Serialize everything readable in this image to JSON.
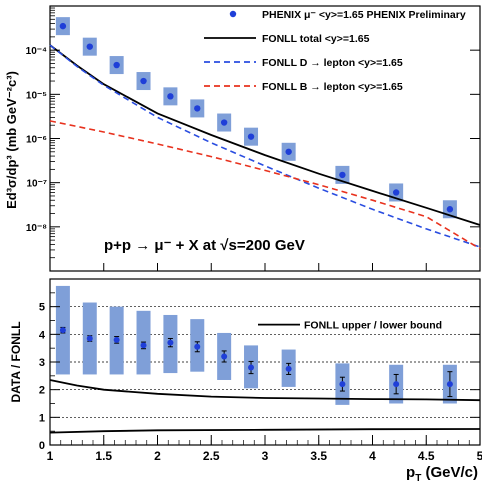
{
  "chart_data": [
    {
      "type": "scatter",
      "panel": "top",
      "ylabel": "Ed³σ/dp³ (mb GeV⁻²c³)",
      "yscale": "log",
      "ylim": [
        1e-09,
        0.001
      ],
      "xlim": [
        1,
        5
      ],
      "y_tick_labels": [
        "10⁻⁴",
        "10⁻⁵",
        "10⁻⁶",
        "10⁻⁷",
        "10⁻⁸"
      ],
      "y_tick_values": [
        0.0001,
        1e-05,
        1e-06,
        1e-07,
        1e-08
      ],
      "annotation": "p+p → μ⁻ + X at √s=200 GeV",
      "legend_position": "top-right",
      "legend": [
        {
          "key": "data",
          "label": "PHENIX μ⁻ <y>=1.65 PHENIX Preliminary",
          "style": "marker",
          "color": "#1f3fd8"
        },
        {
          "key": "total",
          "label": "FONLL total <y>=1.65",
          "style": "solid",
          "color": "#000000"
        },
        {
          "key": "d",
          "label": "FONLL D → lepton <y>=1.65",
          "style": "dashed",
          "color": "#2a4de0"
        },
        {
          "key": "b",
          "label": "FONLL B → lepton <y>=1.65",
          "style": "dashed",
          "color": "#e8321e"
        }
      ],
      "series": [
        {
          "key": "data",
          "points": [
            {
              "x": 1.12,
              "y": 0.00035
            },
            {
              "x": 1.37,
              "y": 0.00012
            },
            {
              "x": 1.62,
              "y": 4.6e-05
            },
            {
              "x": 1.87,
              "y": 2e-05
            },
            {
              "x": 2.12,
              "y": 9e-06
            },
            {
              "x": 2.37,
              "y": 4.8e-06
            },
            {
              "x": 2.62,
              "y": 2.3e-06
            },
            {
              "x": 2.87,
              "y": 1.1e-06
            },
            {
              "x": 3.22,
              "y": 5e-07
            },
            {
              "x": 3.72,
              "y": 1.5e-07
            },
            {
              "x": 4.22,
              "y": 6e-08
            },
            {
              "x": 4.72,
              "y": 2.5e-08
            }
          ]
        },
        {
          "key": "total",
          "points": [
            {
              "x": 1.0,
              "y": 0.00013
            },
            {
              "x": 1.25,
              "y": 4.5e-05
            },
            {
              "x": 1.5,
              "y": 1.7e-05
            },
            {
              "x": 2.0,
              "y": 3.7e-06
            },
            {
              "x": 2.5,
              "y": 1.2e-06
            },
            {
              "x": 3.0,
              "y": 4.2e-07
            },
            {
              "x": 3.5,
              "y": 1.6e-07
            },
            {
              "x": 4.0,
              "y": 6.5e-08
            },
            {
              "x": 4.5,
              "y": 2.7e-08
            },
            {
              "x": 5.0,
              "y": 1.1e-08
            }
          ]
        },
        {
          "key": "d",
          "points": [
            {
              "x": 1.0,
              "y": 0.00013
            },
            {
              "x": 1.25,
              "y": 4.3e-05
            },
            {
              "x": 1.5,
              "y": 1.6e-05
            },
            {
              "x": 2.0,
              "y": 3e-06
            },
            {
              "x": 2.5,
              "y": 8e-07
            },
            {
              "x": 3.0,
              "y": 2.4e-07
            },
            {
              "x": 3.5,
              "y": 7.5e-08
            },
            {
              "x": 4.0,
              "y": 2.5e-08
            },
            {
              "x": 4.5,
              "y": 9e-09
            },
            {
              "x": 5.0,
              "y": 3.5e-09
            }
          ]
        },
        {
          "key": "b",
          "points": [
            {
              "x": 1.0,
              "y": 2.5e-06
            },
            {
              "x": 1.5,
              "y": 1.4e-06
            },
            {
              "x": 2.0,
              "y": 7.5e-07
            },
            {
              "x": 2.5,
              "y": 3.9e-07
            },
            {
              "x": 3.0,
              "y": 1.9e-07
            },
            {
              "x": 3.5,
              "y": 9e-08
            },
            {
              "x": 4.0,
              "y": 4e-08
            },
            {
              "x": 4.5,
              "y": 1.7e-08
            },
            {
              "x": 5.0,
              "y": 3.2e-09
            }
          ]
        }
      ]
    },
    {
      "type": "scatter",
      "panel": "bottom",
      "xlabel": "p_T (GeV/c)",
      "ylabel": "DATA / FONLL",
      "xlim": [
        1,
        5
      ],
      "ylim": [
        0,
        6
      ],
      "x_ticks": [
        1,
        1.5,
        2,
        2.5,
        3,
        3.5,
        4,
        4.5,
        5
      ],
      "x_tick_labels": [
        "1",
        "1.5",
        "2",
        "2.5",
        "3",
        "3.5",
        "4",
        "4.5",
        "5"
      ],
      "y_ticks": [
        0,
        1,
        2,
        3,
        4,
        5
      ],
      "y_tick_labels": [
        "0",
        "1",
        "2",
        "3",
        "4",
        "5"
      ],
      "grid": "dotted horizontal at integer y",
      "legend_position": "top-right",
      "legend": [
        {
          "key": "band",
          "label": "FONLL upper / lower bound",
          "style": "solid",
          "color": "#000000"
        }
      ],
      "series": [
        {
          "key": "ratio",
          "points": [
            {
              "x": 1.12,
              "y": 4.15,
              "err": 0.1,
              "sys_lo": 2.55,
              "sys_hi": 5.75
            },
            {
              "x": 1.37,
              "y": 3.85,
              "err": 0.1,
              "sys_lo": 2.55,
              "sys_hi": 5.15
            },
            {
              "x": 1.62,
              "y": 3.8,
              "err": 0.12,
              "sys_lo": 2.55,
              "sys_hi": 5.0
            },
            {
              "x": 1.87,
              "y": 3.6,
              "err": 0.12,
              "sys_lo": 2.55,
              "sys_hi": 4.85
            },
            {
              "x": 2.12,
              "y": 3.7,
              "err": 0.15,
              "sys_lo": 2.6,
              "sys_hi": 4.7
            },
            {
              "x": 2.37,
              "y": 3.55,
              "err": 0.18,
              "sys_lo": 2.65,
              "sys_hi": 4.55
            },
            {
              "x": 2.62,
              "y": 3.2,
              "err": 0.2,
              "sys_lo": 2.35,
              "sys_hi": 4.05
            },
            {
              "x": 2.87,
              "y": 2.8,
              "err": 0.22,
              "sys_lo": 2.05,
              "sys_hi": 3.6
            },
            {
              "x": 3.22,
              "y": 2.75,
              "err": 0.2,
              "sys_lo": 2.1,
              "sys_hi": 3.45
            },
            {
              "x": 3.72,
              "y": 2.2,
              "err": 0.25,
              "sys_lo": 1.45,
              "sys_hi": 2.95
            },
            {
              "x": 4.22,
              "y": 2.2,
              "err": 0.35,
              "sys_lo": 1.5,
              "sys_hi": 2.9
            },
            {
              "x": 4.72,
              "y": 2.2,
              "err": 0.45,
              "sys_lo": 1.5,
              "sys_hi": 2.9
            }
          ]
        },
        {
          "key": "upper",
          "points": [
            {
              "x": 1.0,
              "y": 2.35
            },
            {
              "x": 1.25,
              "y": 2.15
            },
            {
              "x": 1.5,
              "y": 2.0
            },
            {
              "x": 2.0,
              "y": 1.85
            },
            {
              "x": 2.5,
              "y": 1.75
            },
            {
              "x": 3.0,
              "y": 1.7
            },
            {
              "x": 3.5,
              "y": 1.68
            },
            {
              "x": 4.0,
              "y": 1.66
            },
            {
              "x": 4.5,
              "y": 1.65
            },
            {
              "x": 5.0,
              "y": 1.62
            }
          ]
        },
        {
          "key": "lower",
          "points": [
            {
              "x": 1.0,
              "y": 0.45
            },
            {
              "x": 1.5,
              "y": 0.5
            },
            {
              "x": 2.0,
              "y": 0.53
            },
            {
              "x": 3.0,
              "y": 0.55
            },
            {
              "x": 4.0,
              "y": 0.57
            },
            {
              "x": 5.0,
              "y": 0.58
            }
          ]
        }
      ]
    }
  ]
}
